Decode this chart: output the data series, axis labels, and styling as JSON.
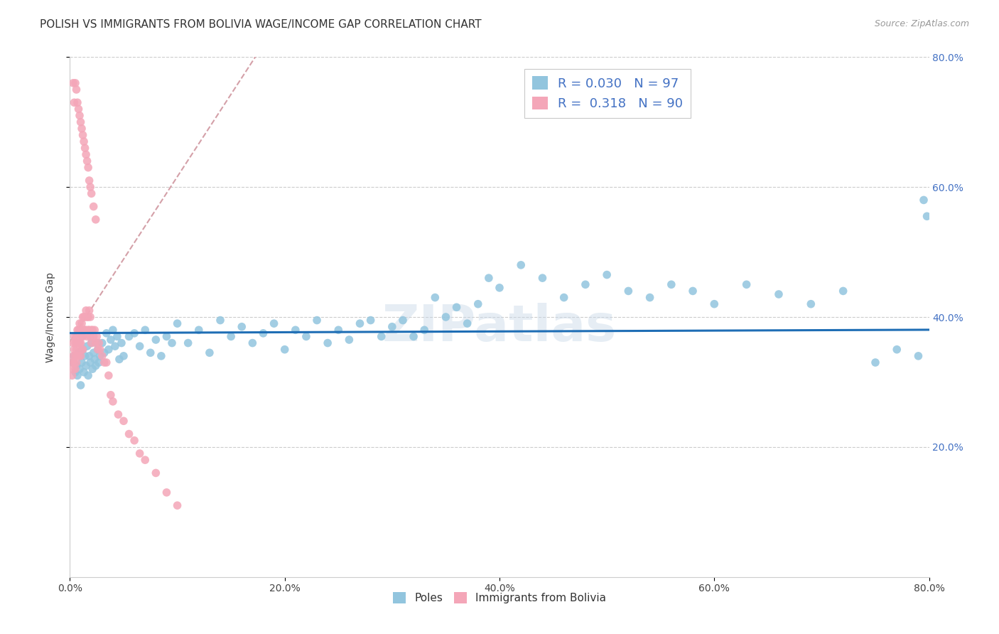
{
  "title": "POLISH VS IMMIGRANTS FROM BOLIVIA WAGE/INCOME GAP CORRELATION CHART",
  "source": "Source: ZipAtlas.com",
  "ylabel": "Wage/Income Gap",
  "xlim": [
    0.0,
    0.8
  ],
  "ylim": [
    0.0,
    0.8
  ],
  "xtick_labels": [
    "0.0%",
    "20.0%",
    "40.0%",
    "60.0%",
    "80.0%"
  ],
  "xtick_positions": [
    0.0,
    0.2,
    0.4,
    0.6,
    0.8
  ],
  "ytick_labels": [
    "20.0%",
    "40.0%",
    "60.0%",
    "80.0%"
  ],
  "ytick_positions": [
    0.2,
    0.4,
    0.6,
    0.8
  ],
  "legend_labels": [
    "Poles",
    "Immigrants from Bolivia"
  ],
  "legend_R": [
    0.03,
    0.318
  ],
  "legend_N": [
    97,
    90
  ],
  "blue_color": "#92c5de",
  "pink_color": "#f4a6b8",
  "trend_blue": "#1f6eb5",
  "trend_pink_dashed": "#d4a0a8",
  "title_fontsize": 11,
  "axis_label_fontsize": 10,
  "tick_fontsize": 10,
  "legend_fontsize": 13,
  "watermark": "ZIPatlas",
  "blue_scatter_x": [
    0.003,
    0.004,
    0.005,
    0.006,
    0.007,
    0.008,
    0.009,
    0.01,
    0.01,
    0.011,
    0.012,
    0.013,
    0.014,
    0.015,
    0.016,
    0.017,
    0.018,
    0.019,
    0.02,
    0.021,
    0.022,
    0.023,
    0.024,
    0.025,
    0.026,
    0.027,
    0.028,
    0.03,
    0.032,
    0.034,
    0.036,
    0.038,
    0.04,
    0.042,
    0.044,
    0.046,
    0.048,
    0.05,
    0.055,
    0.06,
    0.065,
    0.07,
    0.075,
    0.08,
    0.085,
    0.09,
    0.095,
    0.1,
    0.11,
    0.12,
    0.13,
    0.14,
    0.15,
    0.16,
    0.17,
    0.18,
    0.19,
    0.2,
    0.21,
    0.22,
    0.23,
    0.24,
    0.25,
    0.26,
    0.27,
    0.28,
    0.29,
    0.3,
    0.31,
    0.32,
    0.33,
    0.34,
    0.35,
    0.36,
    0.37,
    0.38,
    0.39,
    0.4,
    0.42,
    0.44,
    0.46,
    0.48,
    0.5,
    0.52,
    0.54,
    0.56,
    0.58,
    0.6,
    0.63,
    0.66,
    0.69,
    0.72,
    0.75,
    0.77,
    0.79,
    0.795,
    0.798
  ],
  "blue_scatter_y": [
    0.33,
    0.34,
    0.315,
    0.325,
    0.31,
    0.345,
    0.32,
    0.295,
    0.34,
    0.33,
    0.35,
    0.315,
    0.34,
    0.325,
    0.355,
    0.31,
    0.34,
    0.33,
    0.36,
    0.32,
    0.345,
    0.335,
    0.325,
    0.36,
    0.35,
    0.33,
    0.34,
    0.36,
    0.345,
    0.375,
    0.35,
    0.365,
    0.38,
    0.355,
    0.37,
    0.335,
    0.36,
    0.34,
    0.37,
    0.375,
    0.355,
    0.38,
    0.345,
    0.365,
    0.34,
    0.37,
    0.36,
    0.39,
    0.36,
    0.38,
    0.345,
    0.395,
    0.37,
    0.385,
    0.36,
    0.375,
    0.39,
    0.35,
    0.38,
    0.37,
    0.395,
    0.36,
    0.38,
    0.365,
    0.39,
    0.395,
    0.37,
    0.385,
    0.395,
    0.37,
    0.38,
    0.43,
    0.4,
    0.415,
    0.39,
    0.42,
    0.46,
    0.445,
    0.48,
    0.46,
    0.43,
    0.45,
    0.465,
    0.44,
    0.43,
    0.45,
    0.44,
    0.42,
    0.45,
    0.435,
    0.42,
    0.44,
    0.33,
    0.35,
    0.34,
    0.58,
    0.555
  ],
  "pink_scatter_x": [
    0.002,
    0.002,
    0.003,
    0.003,
    0.003,
    0.004,
    0.004,
    0.004,
    0.005,
    0.005,
    0.005,
    0.006,
    0.006,
    0.006,
    0.007,
    0.007,
    0.007,
    0.008,
    0.008,
    0.008,
    0.009,
    0.009,
    0.01,
    0.01,
    0.01,
    0.011,
    0.011,
    0.011,
    0.012,
    0.012,
    0.012,
    0.013,
    0.013,
    0.014,
    0.014,
    0.015,
    0.015,
    0.016,
    0.016,
    0.017,
    0.017,
    0.018,
    0.018,
    0.019,
    0.019,
    0.02,
    0.02,
    0.021,
    0.022,
    0.023,
    0.024,
    0.025,
    0.026,
    0.027,
    0.028,
    0.03,
    0.032,
    0.034,
    0.036,
    0.038,
    0.04,
    0.045,
    0.05,
    0.055,
    0.06,
    0.065,
    0.07,
    0.08,
    0.09,
    0.1,
    0.003,
    0.004,
    0.005,
    0.006,
    0.007,
    0.008,
    0.009,
    0.01,
    0.011,
    0.012,
    0.013,
    0.014,
    0.015,
    0.016,
    0.017,
    0.018,
    0.019,
    0.02,
    0.022,
    0.024
  ],
  "pink_scatter_y": [
    0.33,
    0.31,
    0.36,
    0.34,
    0.32,
    0.35,
    0.37,
    0.33,
    0.36,
    0.34,
    0.32,
    0.37,
    0.35,
    0.33,
    0.38,
    0.36,
    0.34,
    0.38,
    0.36,
    0.34,
    0.39,
    0.36,
    0.38,
    0.36,
    0.34,
    0.39,
    0.37,
    0.35,
    0.4,
    0.37,
    0.35,
    0.4,
    0.38,
    0.4,
    0.38,
    0.41,
    0.38,
    0.4,
    0.37,
    0.4,
    0.38,
    0.41,
    0.38,
    0.4,
    0.37,
    0.38,
    0.36,
    0.38,
    0.37,
    0.38,
    0.36,
    0.37,
    0.35,
    0.36,
    0.35,
    0.34,
    0.33,
    0.33,
    0.31,
    0.28,
    0.27,
    0.25,
    0.24,
    0.22,
    0.21,
    0.19,
    0.18,
    0.16,
    0.13,
    0.11,
    0.76,
    0.73,
    0.76,
    0.75,
    0.73,
    0.72,
    0.71,
    0.7,
    0.69,
    0.68,
    0.67,
    0.66,
    0.65,
    0.64,
    0.63,
    0.61,
    0.6,
    0.59,
    0.57,
    0.55
  ]
}
